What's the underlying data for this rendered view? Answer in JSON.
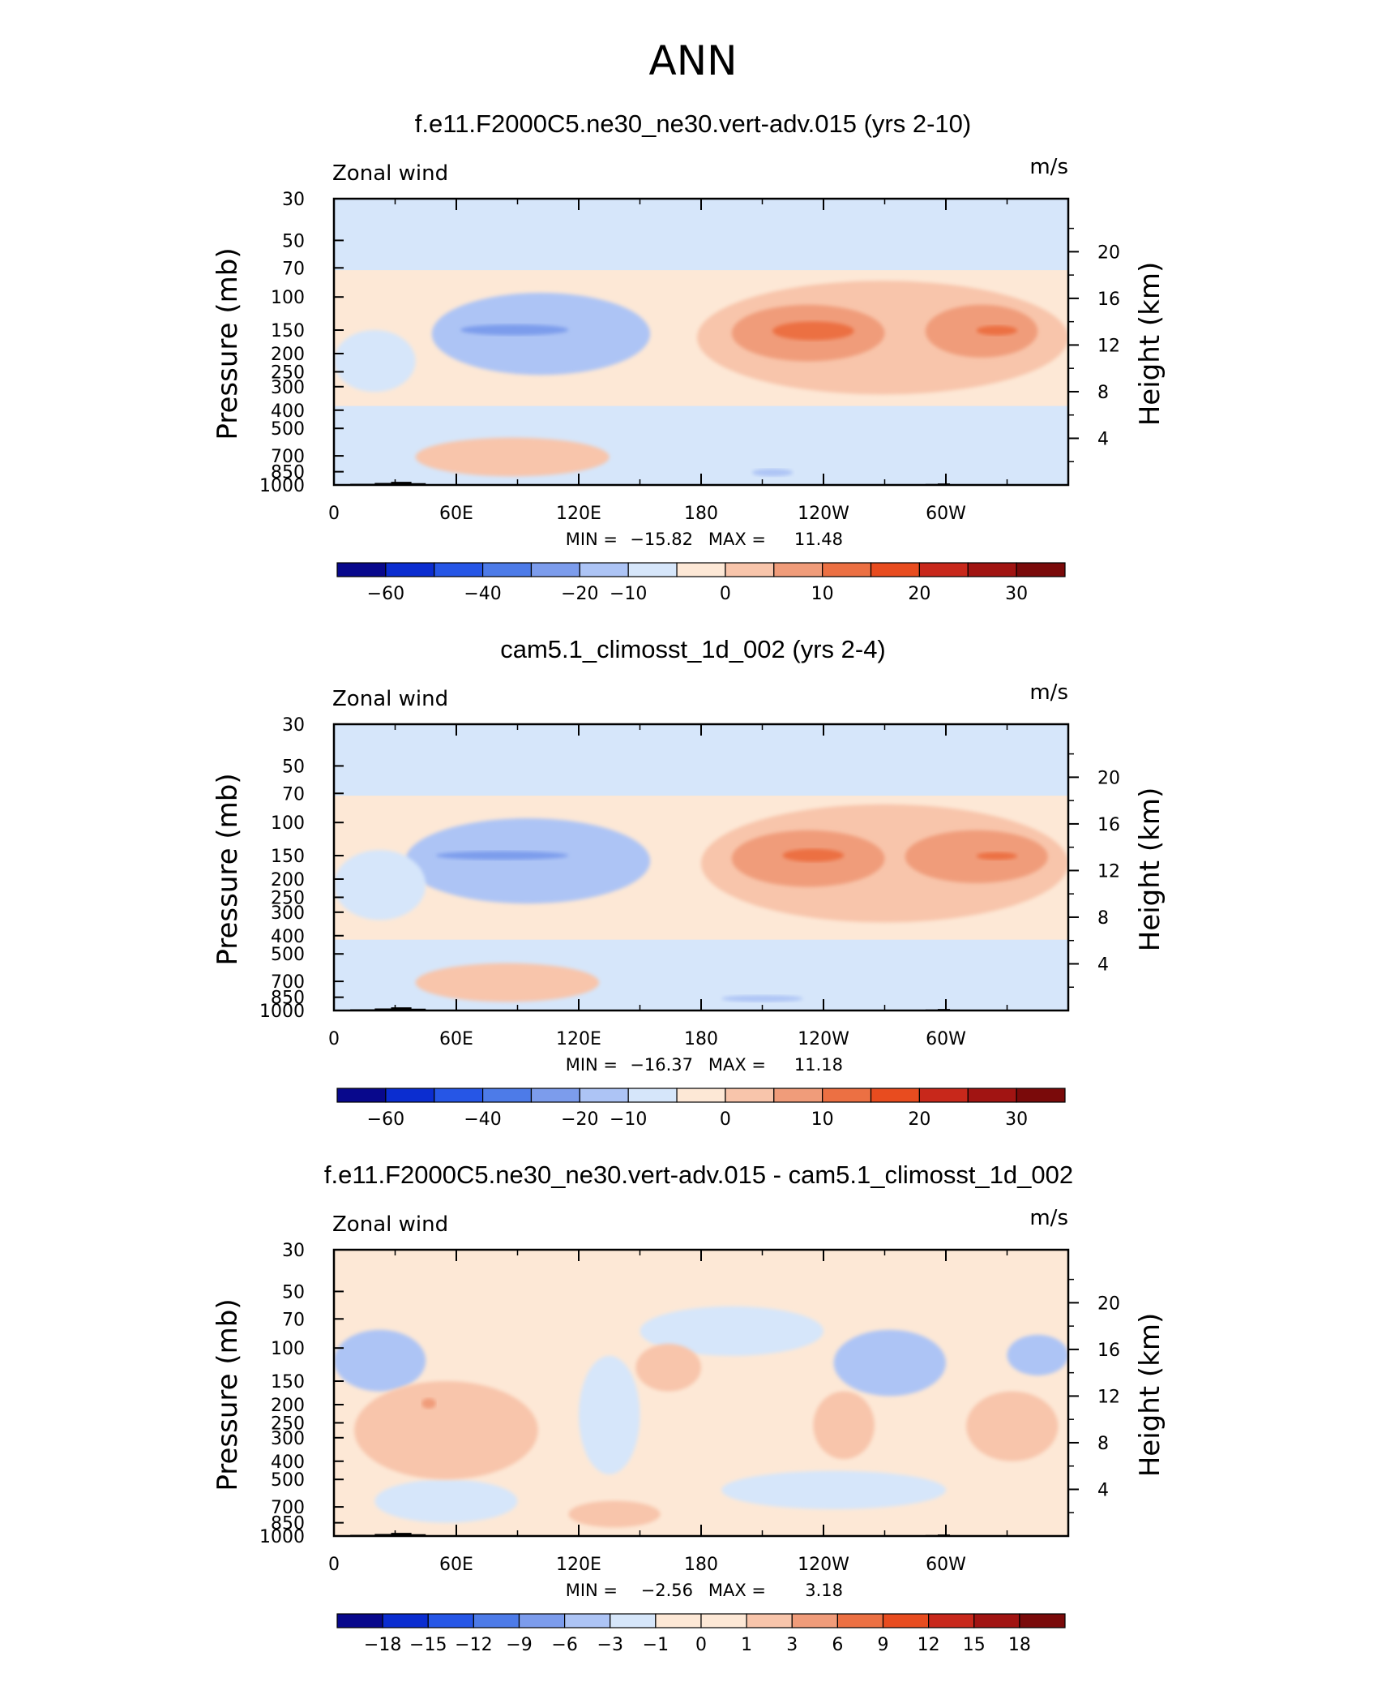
{
  "figure_title": "ANN",
  "chart_data": [
    {
      "type": "heatmap",
      "title": "f.e11.F2000C5.ne30_ne30.vert-adv.015 (yrs 2-10)",
      "left_label": "Zonal wind",
      "units": "m/s",
      "xlabel": "",
      "ylabel": "Pressure (mb)",
      "ylabel_right": "Height (km)",
      "x_ticks": [
        "0",
        "60E",
        "120E",
        "180",
        "120W",
        "60W"
      ],
      "x_tick_values": [
        0,
        60,
        120,
        180,
        240,
        300
      ],
      "xlim": [
        0,
        360
      ],
      "y_ticks": [
        "30",
        "50",
        "70",
        "100",
        "150",
        "200",
        "250",
        "300",
        "400",
        "500",
        "700",
        "850",
        "1000"
      ],
      "y_tick_values": [
        30,
        50,
        70,
        100,
        150,
        200,
        250,
        300,
        400,
        500,
        700,
        850,
        1000
      ],
      "ylim": [
        1000,
        30
      ],
      "height_ticks": [
        "4",
        "8",
        "12",
        "16",
        "20"
      ],
      "height_tick_values": [
        4,
        8,
        12,
        16,
        20
      ],
      "min_label": "MIN =",
      "min_value": "−15.82",
      "max_label": "MAX =",
      "max_value": "11.48",
      "colorbar_labels": [
        "−60",
        "−40",
        "−20",
        "−10",
        "0",
        "10",
        "20",
        "30"
      ],
      "colorbar_colors": [
        "#08088c",
        "#0b2dd0",
        "#2656e6",
        "#4d7be8",
        "#7c9cec",
        "#adc4f5",
        "#d6e6fa",
        "#fde8d6",
        "#f8c5ab",
        "#f09c7a",
        "#ec7043",
        "#e84c1f",
        "#c8281b",
        "#a11412",
        "#7a0a0a"
      ],
      "fields": {
        "background": "#d6e6fa",
        "features": [
          {
            "shape": "rect",
            "lon": [
              0,
              360
            ],
            "p": [
              30,
              72
            ],
            "level": 6
          },
          {
            "shape": "rect",
            "lon": [
              0,
              360
            ],
            "p": [
              72,
              380
            ],
            "level": 7
          },
          {
            "shape": "ellipse",
            "lon": [
              48,
              155
            ],
            "p": [
              95,
              260
            ],
            "level": 5
          },
          {
            "shape": "ellipse",
            "lon": [
              62,
              115
            ],
            "p": [
              140,
              160
            ],
            "level": 4
          },
          {
            "shape": "ellipse",
            "lon": [
              0,
              40
            ],
            "p": [
              150,
              320
            ],
            "level": 6
          },
          {
            "shape": "ellipse",
            "lon": [
              178,
              360
            ],
            "p": [
              82,
              330
            ],
            "level": 8
          },
          {
            "shape": "ellipse",
            "lon": [
              195,
              270
            ],
            "p": [
              110,
              220
            ],
            "level": 9
          },
          {
            "shape": "ellipse",
            "lon": [
              215,
              255
            ],
            "p": [
              135,
              170
            ],
            "level": 10
          },
          {
            "shape": "ellipse",
            "lon": [
              290,
              345
            ],
            "p": [
              110,
              210
            ],
            "level": 9
          },
          {
            "shape": "ellipse",
            "lon": [
              315,
              335
            ],
            "p": [
              142,
              160
            ],
            "level": 10
          },
          {
            "shape": "ellipse",
            "lon": [
              40,
              135
            ],
            "p": [
              560,
              900
            ],
            "level": 8
          },
          {
            "shape": "ellipse",
            "lon": [
              205,
              225
            ],
            "p": [
              820,
              900
            ],
            "level": 5
          }
        ]
      }
    },
    {
      "type": "heatmap",
      "title": "cam5.1_climosst_1d_002 (yrs 2-4)",
      "left_label": "Zonal wind",
      "units": "m/s",
      "xlabel": "",
      "ylabel": "Pressure (mb)",
      "ylabel_right": "Height (km)",
      "x_ticks": [
        "0",
        "60E",
        "120E",
        "180",
        "120W",
        "60W"
      ],
      "x_tick_values": [
        0,
        60,
        120,
        180,
        240,
        300
      ],
      "xlim": [
        0,
        360
      ],
      "y_ticks": [
        "30",
        "50",
        "70",
        "100",
        "150",
        "200",
        "250",
        "300",
        "400",
        "500",
        "700",
        "850",
        "1000"
      ],
      "y_tick_values": [
        30,
        50,
        70,
        100,
        150,
        200,
        250,
        300,
        400,
        500,
        700,
        850,
        1000
      ],
      "ylim": [
        1000,
        30
      ],
      "height_ticks": [
        "4",
        "8",
        "12",
        "16",
        "20"
      ],
      "height_tick_values": [
        4,
        8,
        12,
        16,
        20
      ],
      "min_label": "MIN =",
      "min_value": "−16.37",
      "max_label": "MAX =",
      "max_value": "11.18",
      "colorbar_labels": [
        "−60",
        "−40",
        "−20",
        "−10",
        "0",
        "10",
        "20",
        "30"
      ],
      "colorbar_colors": [
        "#08088c",
        "#0b2dd0",
        "#2656e6",
        "#4d7be8",
        "#7c9cec",
        "#adc4f5",
        "#d6e6fa",
        "#fde8d6",
        "#f8c5ab",
        "#f09c7a",
        "#ec7043",
        "#e84c1f",
        "#c8281b",
        "#a11412",
        "#7a0a0a"
      ],
      "fields": {
        "background": "#d6e6fa",
        "features": [
          {
            "shape": "rect",
            "lon": [
              0,
              360
            ],
            "p": [
              30,
              72
            ],
            "level": 6
          },
          {
            "shape": "rect",
            "lon": [
              0,
              360
            ],
            "p": [
              72,
              420
            ],
            "level": 7
          },
          {
            "shape": "ellipse",
            "lon": [
              35,
              155
            ],
            "p": [
              95,
              270
            ],
            "level": 5
          },
          {
            "shape": "ellipse",
            "lon": [
              50,
              115
            ],
            "p": [
              142,
              158
            ],
            "level": 4
          },
          {
            "shape": "ellipse",
            "lon": [
              0,
              45
            ],
            "p": [
              140,
              330
            ],
            "level": 6
          },
          {
            "shape": "ellipse",
            "lon": [
              180,
              360
            ],
            "p": [
              80,
              340
            ],
            "level": 8
          },
          {
            "shape": "ellipse",
            "lon": [
              195,
              270
            ],
            "p": [
              110,
              220
            ],
            "level": 9
          },
          {
            "shape": "ellipse",
            "lon": [
              220,
              250
            ],
            "p": [
              138,
              162
            ],
            "level": 10
          },
          {
            "shape": "ellipse",
            "lon": [
              280,
              350
            ],
            "p": [
              110,
              210
            ],
            "level": 9
          },
          {
            "shape": "ellipse",
            "lon": [
              315,
              335
            ],
            "p": [
              144,
              158
            ],
            "level": 10
          },
          {
            "shape": "ellipse",
            "lon": [
              40,
              130
            ],
            "p": [
              560,
              900
            ],
            "level": 8
          },
          {
            "shape": "ellipse",
            "lon": [
              190,
              230
            ],
            "p": [
              830,
              900
            ],
            "level": 5
          }
        ]
      }
    },
    {
      "type": "heatmap",
      "title": "f.e11.F2000C5.ne30_ne30.vert-adv.015 - cam5.1_climosst_1d_002",
      "left_label": "Zonal wind",
      "units": "m/s",
      "xlabel": "",
      "ylabel": "Pressure (mb)",
      "ylabel_right": "Height (km)",
      "x_ticks": [
        "0",
        "60E",
        "120E",
        "180",
        "120W",
        "60W"
      ],
      "x_tick_values": [
        0,
        60,
        120,
        180,
        240,
        300
      ],
      "xlim": [
        0,
        360
      ],
      "y_ticks": [
        "30",
        "50",
        "70",
        "100",
        "150",
        "200",
        "250",
        "300",
        "400",
        "500",
        "700",
        "850",
        "1000"
      ],
      "y_tick_values": [
        30,
        50,
        70,
        100,
        150,
        200,
        250,
        300,
        400,
        500,
        700,
        850,
        1000
      ],
      "ylim": [
        1000,
        30
      ],
      "height_ticks": [
        "4",
        "8",
        "12",
        "16",
        "20"
      ],
      "height_tick_values": [
        4,
        8,
        12,
        16,
        20
      ],
      "min_label": "MIN =",
      "min_value": "−2.56",
      "max_label": "MAX =",
      "max_value": "3.18",
      "colorbar_labels": [
        "−18",
        "−15",
        "−12",
        "−9",
        "−6",
        "−3",
        "−1",
        "0",
        "1",
        "3",
        "6",
        "9",
        "12",
        "15",
        "18"
      ],
      "colorbar_colors": [
        "#08088c",
        "#0b2dd0",
        "#2656e6",
        "#4d7be8",
        "#7c9cec",
        "#adc4f5",
        "#d6e6fa",
        "#fde8d6",
        "#fde8d6",
        "#f8c5ab",
        "#f09c7a",
        "#ec7043",
        "#e84c1f",
        "#c8281b",
        "#a11412",
        "#7a0a0a"
      ],
      "fields": {
        "background": "#fde8d6",
        "features": [
          {
            "shape": "ellipse",
            "lon": [
              0,
              45
            ],
            "p": [
              80,
              170
            ],
            "level": 5
          },
          {
            "shape": "ellipse",
            "lon": [
              150,
              240
            ],
            "p": [
              60,
              110
            ],
            "level": 6
          },
          {
            "shape": "ellipse",
            "lon": [
              245,
              300
            ],
            "p": [
              80,
              180
            ],
            "level": 5
          },
          {
            "shape": "ellipse",
            "lon": [
              330,
              360
            ],
            "p": [
              85,
              140
            ],
            "level": 5
          },
          {
            "shape": "ellipse",
            "lon": [
              120,
              150
            ],
            "p": [
              110,
              470
            ],
            "level": 6
          },
          {
            "shape": "ellipse",
            "lon": [
              190,
              300
            ],
            "p": [
              450,
              720
            ],
            "level": 6
          },
          {
            "shape": "ellipse",
            "lon": [
              20,
              90
            ],
            "p": [
              500,
              850
            ],
            "level": 6
          },
          {
            "shape": "ellipse",
            "lon": [
              10,
              100
            ],
            "p": [
              150,
              500
            ],
            "level": 9
          },
          {
            "shape": "ellipse",
            "lon": [
              43,
              50
            ],
            "p": [
              185,
              210
            ],
            "level": 10
          },
          {
            "shape": "ellipse",
            "lon": [
              148,
              180
            ],
            "p": [
              95,
              170
            ],
            "level": 9
          },
          {
            "shape": "ellipse",
            "lon": [
              235,
              265
            ],
            "p": [
              170,
              390
            ],
            "level": 9
          },
          {
            "shape": "ellipse",
            "lon": [
              310,
              355
            ],
            "p": [
              170,
              400
            ],
            "level": 9
          },
          {
            "shape": "ellipse",
            "lon": [
              115,
              160
            ],
            "p": [
              650,
              900
            ],
            "level": 9
          }
        ]
      }
    }
  ]
}
